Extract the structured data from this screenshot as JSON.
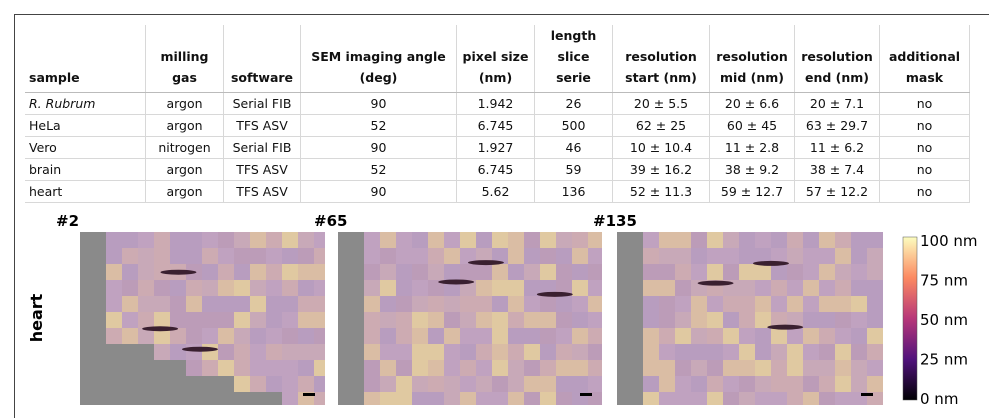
{
  "table": {
    "headers": [
      [
        "sample"
      ],
      [
        "milling",
        "gas"
      ],
      [
        "software"
      ],
      [
        "SEM imaging angle",
        "(deg)"
      ],
      [
        "pixel size",
        "(nm)"
      ],
      [
        "length",
        "slice serie"
      ],
      [
        "resolution",
        "start (nm)"
      ],
      [
        "resolution",
        "mid (nm)"
      ],
      [
        "resolution",
        "end (nm)"
      ],
      [
        "additional",
        "mask"
      ]
    ],
    "rows": [
      [
        "R. Rubrum",
        "argon",
        "Serial FIB",
        "90",
        "1.942",
        "26",
        "20 ± 5.5",
        "20 ± 6.6",
        "20 ± 7.1",
        "no"
      ],
      [
        "HeLa",
        "argon",
        "TFS ASV",
        "52",
        "6.745",
        "500",
        "62 ± 25",
        "60 ± 45",
        "63 ± 29.7",
        "no"
      ],
      [
        "Vero",
        "nitrogen",
        "Serial FIB",
        "90",
        "1.927",
        "46",
        "10 ± 10.4",
        "11 ± 2.8",
        "11 ± 6.2",
        "no"
      ],
      [
        "brain",
        "argon",
        "TFS ASV",
        "52",
        "6.745",
        "59",
        "39 ± 16.2",
        "38 ± 9.2",
        "38 ± 7.4",
        "no"
      ],
      [
        "heart",
        "argon",
        "TFS ASV",
        "90",
        "5.62",
        "136",
        "52 ± 11.3",
        "59 ± 12.7",
        "57 ± 12.2",
        "no"
      ]
    ]
  },
  "figure": {
    "row_label": "heart",
    "panels": [
      "#2",
      "#65",
      "#135"
    ],
    "colorbar_labels": [
      "100 nm",
      "75 nm",
      "50 nm",
      "25 nm",
      "0 nm"
    ]
  }
}
